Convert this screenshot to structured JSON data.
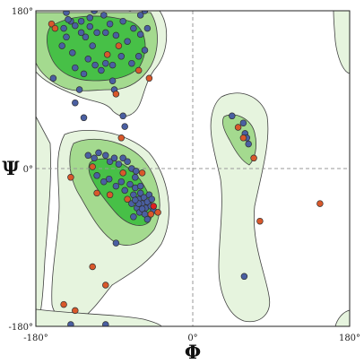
{
  "chart_data": {
    "type": "scatter",
    "x_label": "Φ",
    "y_label": "Ψ",
    "xlim": [
      -180,
      180
    ],
    "ylim": [
      -180,
      180
    ],
    "x_ticks": [
      {
        "value": -180,
        "label": "-180°"
      },
      {
        "value": 0,
        "label": "0°"
      },
      {
        "value": 180,
        "label": "180°"
      }
    ],
    "y_ticks": [
      {
        "value": 180,
        "label": "180°"
      },
      {
        "value": 0,
        "label": "0°"
      },
      {
        "value": -180,
        "label": "-180°"
      }
    ],
    "reference_lines": {
      "x": 0,
      "y": 0,
      "style": "dashed"
    },
    "colors": {
      "allowed_region": "#e6f4de",
      "favoured_region": "#a4da8f",
      "core_region": "#47c047",
      "contour_line": "#404040",
      "point_blue": "#4a5fa2",
      "point_orange": "#d9582b",
      "point_red": "#e02020",
      "point_outline": "#303030"
    },
    "points": [
      {
        "x": -162,
        "y": 165,
        "c": "orange"
      },
      {
        "x": -158,
        "y": 160,
        "c": "orange"
      },
      {
        "x": -148,
        "y": 160,
        "c": "blue"
      },
      {
        "x": -140,
        "y": 168,
        "c": "blue"
      },
      {
        "x": -135,
        "y": 163,
        "c": "blue"
      },
      {
        "x": -128,
        "y": 168,
        "c": "blue"
      },
      {
        "x": -123,
        "y": 150,
        "c": "blue"
      },
      {
        "x": -145,
        "y": 150,
        "c": "blue"
      },
      {
        "x": -150,
        "y": 140,
        "c": "blue"
      },
      {
        "x": -138,
        "y": 132,
        "c": "blue"
      },
      {
        "x": -120,
        "y": 125,
        "c": "blue"
      },
      {
        "x": -115,
        "y": 140,
        "c": "blue"
      },
      {
        "x": -110,
        "y": 155,
        "c": "blue"
      },
      {
        "x": -118,
        "y": 172,
        "c": "blue"
      },
      {
        "x": -102,
        "y": 175,
        "c": "blue"
      },
      {
        "x": -95,
        "y": 165,
        "c": "blue"
      },
      {
        "x": -88,
        "y": 152,
        "c": "blue"
      },
      {
        "x": -80,
        "y": 168,
        "c": "blue"
      },
      {
        "x": -75,
        "y": 145,
        "c": "blue"
      },
      {
        "x": -68,
        "y": 160,
        "c": "blue"
      },
      {
        "x": -60,
        "y": 153,
        "c": "blue"
      },
      {
        "x": -55,
        "y": 135,
        "c": "blue"
      },
      {
        "x": -62,
        "y": 128,
        "c": "blue"
      },
      {
        "x": -70,
        "y": 120,
        "c": "blue"
      },
      {
        "x": -82,
        "y": 128,
        "c": "blue"
      },
      {
        "x": -92,
        "y": 118,
        "c": "blue"
      },
      {
        "x": -100,
        "y": 120,
        "c": "blue"
      },
      {
        "x": -105,
        "y": 112,
        "c": "blue"
      },
      {
        "x": -112,
        "y": 118,
        "c": "blue"
      },
      {
        "x": -125,
        "y": 108,
        "c": "blue"
      },
      {
        "x": -135,
        "y": 115,
        "c": "blue"
      },
      {
        "x": -98,
        "y": 130,
        "c": "orange"
      },
      {
        "x": -85,
        "y": 140,
        "c": "orange"
      },
      {
        "x": -62,
        "y": 112,
        "c": "orange"
      },
      {
        "x": -52,
        "y": 160,
        "c": "blue"
      },
      {
        "x": -60,
        "y": 175,
        "c": "blue"
      },
      {
        "x": -55,
        "y": 180,
        "c": "blue"
      },
      {
        "x": -145,
        "y": 178,
        "c": "blue"
      },
      {
        "x": -113,
        "y": 180,
        "c": "blue"
      },
      {
        "x": -72,
        "y": 183,
        "c": "blue"
      },
      {
        "x": -143,
        "y": 170,
        "c": "blue"
      },
      {
        "x": -128,
        "y": 155,
        "c": "blue"
      },
      {
        "x": -118,
        "y": 162,
        "c": "blue"
      },
      {
        "x": -100,
        "y": 155,
        "c": "blue"
      },
      {
        "x": -92,
        "y": 100,
        "c": "blue"
      },
      {
        "x": -90,
        "y": 90,
        "c": "blue"
      },
      {
        "x": -88,
        "y": 85,
        "c": "orange"
      },
      {
        "x": -50,
        "y": 103,
        "c": "orange"
      },
      {
        "x": -160,
        "y": 103,
        "c": "blue"
      },
      {
        "x": -130,
        "y": 90,
        "c": "blue"
      },
      {
        "x": -135,
        "y": 75,
        "c": "blue"
      },
      {
        "x": -125,
        "y": 58,
        "c": "blue"
      },
      {
        "x": -80,
        "y": 60,
        "c": "blue"
      },
      {
        "x": -78,
        "y": 48,
        "c": "blue"
      },
      {
        "x": -82,
        "y": 35,
        "c": "orange"
      },
      {
        "x": -120,
        "y": 15,
        "c": "blue"
      },
      {
        "x": -113,
        "y": 12,
        "c": "blue"
      },
      {
        "x": -108,
        "y": 18,
        "c": "blue"
      },
      {
        "x": -100,
        "y": 15,
        "c": "blue"
      },
      {
        "x": -95,
        "y": 8,
        "c": "blue"
      },
      {
        "x": -90,
        "y": 12,
        "c": "blue"
      },
      {
        "x": -85,
        "y": 5,
        "c": "blue"
      },
      {
        "x": -80,
        "y": 12,
        "c": "blue"
      },
      {
        "x": -75,
        "y": 8,
        "c": "blue"
      },
      {
        "x": -70,
        "y": 0,
        "c": "blue"
      },
      {
        "x": -65,
        "y": -3,
        "c": "blue"
      },
      {
        "x": -58,
        "y": -5,
        "c": "orange"
      },
      {
        "x": -110,
        "y": -8,
        "c": "blue"
      },
      {
        "x": -102,
        "y": -15,
        "c": "blue"
      },
      {
        "x": -96,
        "y": -12,
        "c": "blue"
      },
      {
        "x": -88,
        "y": -20,
        "c": "blue"
      },
      {
        "x": -82,
        "y": -15,
        "c": "blue"
      },
      {
        "x": -78,
        "y": -25,
        "c": "blue"
      },
      {
        "x": -72,
        "y": -18,
        "c": "blue"
      },
      {
        "x": -68,
        "y": -30,
        "c": "blue"
      },
      {
        "x": -66,
        "y": -22,
        "c": "blue"
      },
      {
        "x": -62,
        "y": -35,
        "c": "blue"
      },
      {
        "x": -60,
        "y": -28,
        "c": "blue"
      },
      {
        "x": -58,
        "y": -40,
        "c": "blue"
      },
      {
        "x": -56,
        "y": -33,
        "c": "blue"
      },
      {
        "x": -54,
        "y": -45,
        "c": "blue"
      },
      {
        "x": -52,
        "y": -38,
        "c": "blue"
      },
      {
        "x": -50,
        "y": -30,
        "c": "blue"
      },
      {
        "x": -48,
        "y": -43,
        "c": "blue"
      },
      {
        "x": -47,
        "y": -35,
        "c": "blue"
      },
      {
        "x": -45,
        "y": -48,
        "c": "blue"
      },
      {
        "x": -64,
        "y": -45,
        "c": "blue"
      },
      {
        "x": -61,
        "y": -50,
        "c": "blue"
      },
      {
        "x": -58,
        "y": -46,
        "c": "blue"
      },
      {
        "x": -55,
        "y": -52,
        "c": "blue"
      },
      {
        "x": -62,
        "y": -40,
        "c": "blue"
      },
      {
        "x": -70,
        "y": -40,
        "c": "blue"
      },
      {
        "x": -66,
        "y": -36,
        "c": "blue"
      },
      {
        "x": -60,
        "y": -20,
        "c": "blue"
      },
      {
        "x": -66,
        "y": -10,
        "c": "blue"
      },
      {
        "x": -75,
        "y": -35,
        "c": "orange"
      },
      {
        "x": -48,
        "y": -52,
        "c": "orange"
      },
      {
        "x": -52,
        "y": -58,
        "c": "blue"
      },
      {
        "x": -68,
        "y": -55,
        "c": "blue"
      },
      {
        "x": -40,
        "y": -50,
        "c": "orange"
      },
      {
        "x": -45,
        "y": -43,
        "c": "red"
      },
      {
        "x": -110,
        "y": -28,
        "c": "orange"
      },
      {
        "x": -95,
        "y": -30,
        "c": "orange"
      },
      {
        "x": -80,
        "y": -5,
        "c": "orange"
      },
      {
        "x": -115,
        "y": 2,
        "c": "orange"
      },
      {
        "x": -140,
        "y": -10,
        "c": "orange"
      },
      {
        "x": -88,
        "y": -85,
        "c": "blue"
      },
      {
        "x": -115,
        "y": -112,
        "c": "orange"
      },
      {
        "x": -100,
        "y": -133,
        "c": "orange"
      },
      {
        "x": -148,
        "y": -155,
        "c": "orange"
      },
      {
        "x": -135,
        "y": -162,
        "c": "orange"
      },
      {
        "x": -100,
        "y": -178,
        "c": "blue"
      },
      {
        "x": -140,
        "y": -178,
        "c": "blue"
      },
      {
        "x": 45,
        "y": 60,
        "c": "blue"
      },
      {
        "x": 52,
        "y": 47,
        "c": "orange"
      },
      {
        "x": 58,
        "y": 52,
        "c": "blue"
      },
      {
        "x": 60,
        "y": 40,
        "c": "blue"
      },
      {
        "x": 62,
        "y": 35,
        "c": "blue"
      },
      {
        "x": 64,
        "y": 28,
        "c": "blue"
      },
      {
        "x": 58,
        "y": 35,
        "c": "orange"
      },
      {
        "x": 70,
        "y": 12,
        "c": "orange"
      },
      {
        "x": 77,
        "y": -60,
        "c": "orange"
      },
      {
        "x": 59,
        "y": -123,
        "c": "blue"
      },
      {
        "x": 146,
        "y": -40,
        "c": "orange"
      }
    ]
  }
}
